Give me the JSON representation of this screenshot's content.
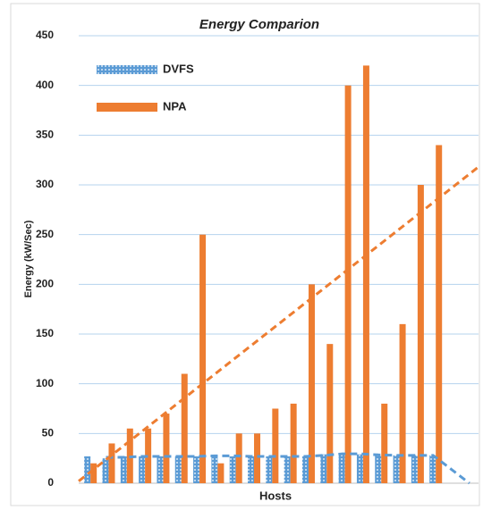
{
  "chart_data": {
    "type": "bar",
    "title": "Energy Comparion",
    "y_label": "Energy (kW/Sec)",
    "x_label": "Hosts",
    "categories": [
      null,
      null,
      null,
      null,
      null,
      null,
      null,
      null,
      null,
      null,
      null,
      null,
      null,
      null,
      null,
      null,
      null,
      null,
      null,
      null,
      null,
      null
    ],
    "series": [
      {
        "name": "DVFS",
        "color": "#5b9bd5",
        "pattern": "dots",
        "trendline": {
          "type": "moving_average",
          "period": 2
        },
        "values": [
          27,
          25,
          27,
          27,
          27,
          27,
          27,
          28,
          27,
          27,
          27,
          27,
          27,
          29,
          30,
          29,
          28,
          28,
          28,
          28,
          0,
          0
        ]
      },
      {
        "name": "NPA",
        "color": "#ed7d31",
        "trendline": {
          "type": "linear"
        },
        "values": [
          20,
          40,
          55,
          55,
          70,
          110,
          250,
          20,
          50,
          50,
          75,
          80,
          200,
          140,
          400,
          420,
          80,
          160,
          300,
          340,
          null,
          null
        ]
      }
    ],
    "ylim": [
      0,
      450
    ],
    "yticks": [
      0,
      50,
      100,
      150,
      200,
      250,
      300,
      350,
      400,
      450
    ],
    "grid": true,
    "legend": "top-left"
  }
}
